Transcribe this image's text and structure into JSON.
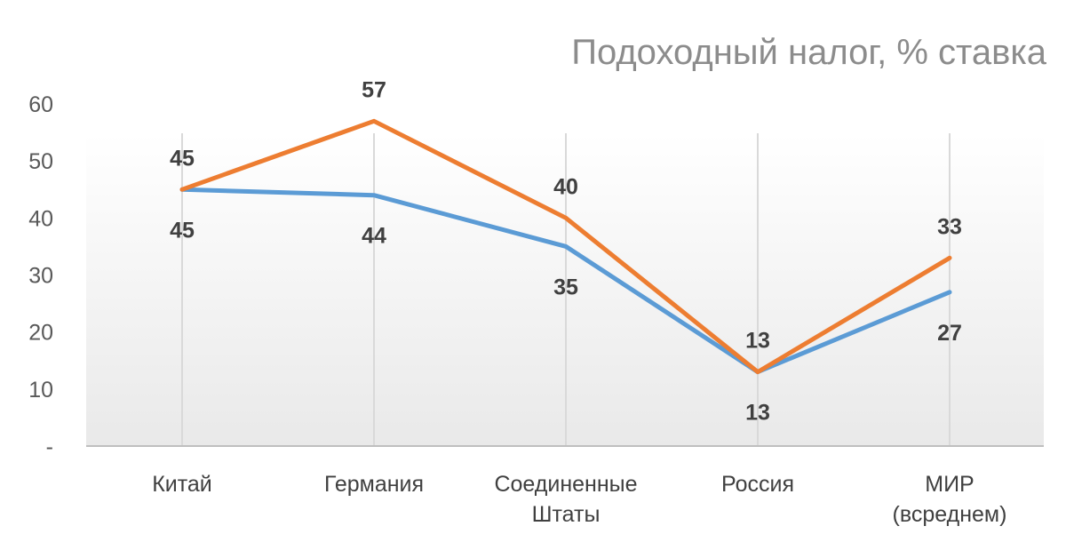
{
  "chart_data": {
    "type": "line",
    "title": "Подоходный налог, % ставка",
    "categories": [
      [
        "Китай"
      ],
      [
        "Германия"
      ],
      [
        "Соединенные",
        "Штаты"
      ],
      [
        "Россия"
      ],
      [
        "МИР",
        "(всреднем)"
      ]
    ],
    "y_ticks": [
      "-",
      "10",
      "20",
      "30",
      "40",
      "50",
      "60"
    ],
    "ylim": [
      0,
      60
    ],
    "grid": "vertical",
    "series": [
      {
        "color": "#5b9bd5",
        "values": [
          45,
          44,
          35,
          13,
          27
        ],
        "labels": [
          "45",
          "44",
          "35",
          "13",
          "27"
        ],
        "label_position": "below"
      },
      {
        "color": "#ed7d31",
        "values": [
          45,
          57,
          40,
          13,
          33
        ],
        "labels": [
          "45",
          "57",
          "40",
          "13",
          "33"
        ],
        "label_position": "above"
      }
    ]
  }
}
